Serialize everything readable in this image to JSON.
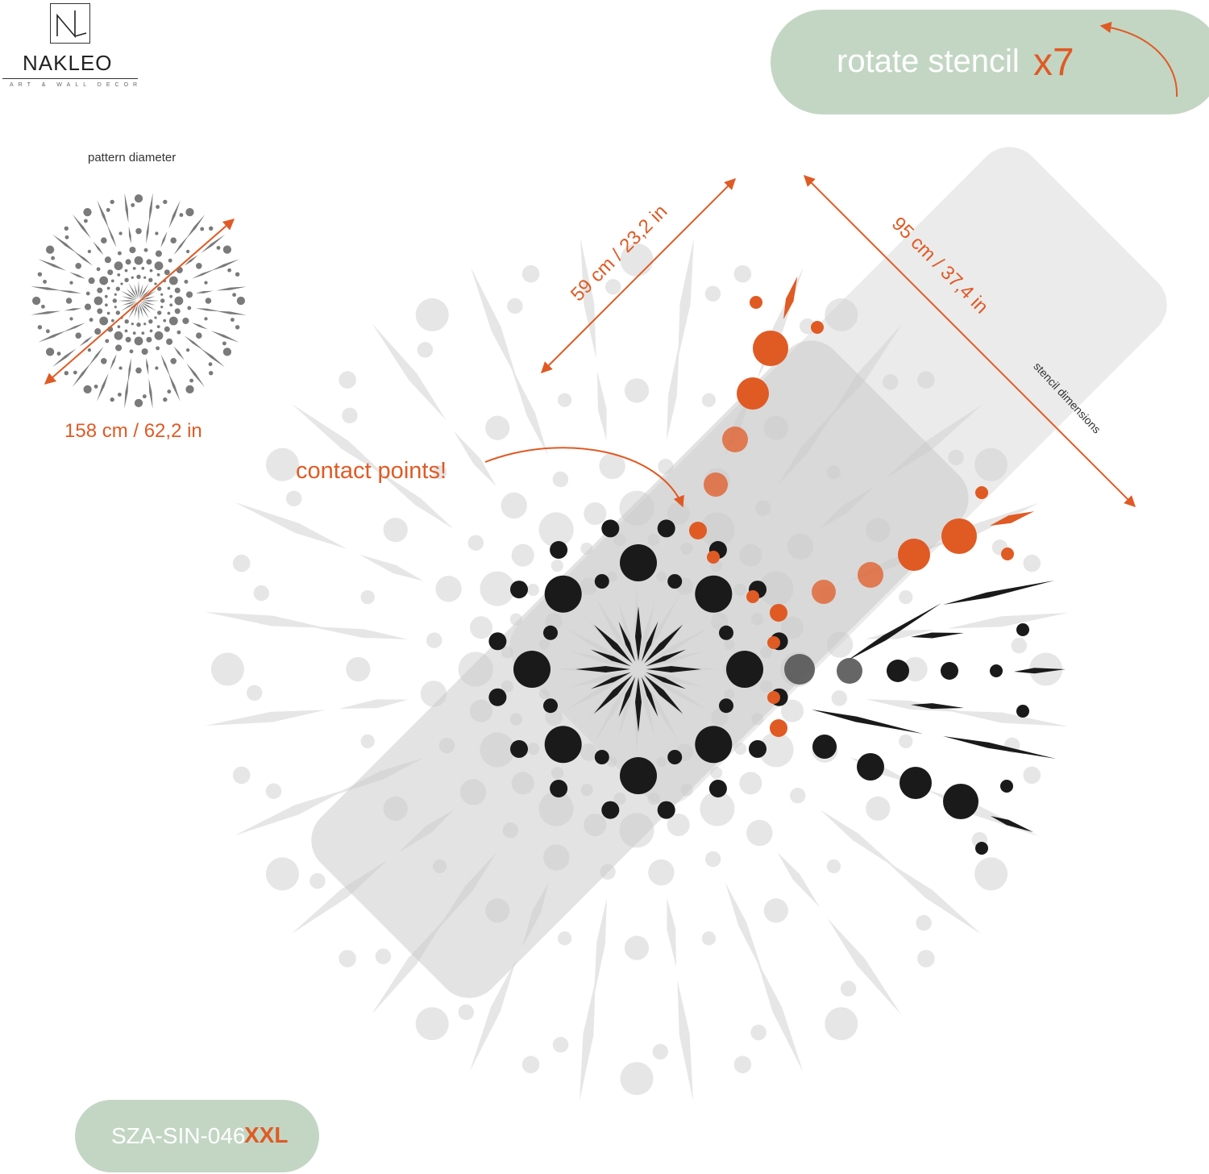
{
  "brand": {
    "logo_mark_text": "NL",
    "name": "NAKLEO",
    "tagline": "ART & WALL DECOR"
  },
  "rotate_badge": {
    "text": "rotate stencil",
    "multiplier": "x7"
  },
  "pattern_diameter": {
    "label": "pattern diameter",
    "value": "158 cm / 62,2 in"
  },
  "stencil": {
    "width_label": "59 cm / 23,2 in",
    "height_label": "95 cm / 37,4 in",
    "caption": "stencil dimensions"
  },
  "contact_label": "contact points!",
  "product_code": {
    "code": "SZA-SIN-046",
    "size": "XXL"
  },
  "colors": {
    "accent": "#e05a24",
    "badge_bg": "#c3d6c4",
    "ghost_pattern": "#e6e6e6",
    "stencil_panel": "#d4d4d4",
    "dots": "#1a1a1a",
    "thumbnail": "#7a7a7a"
  }
}
